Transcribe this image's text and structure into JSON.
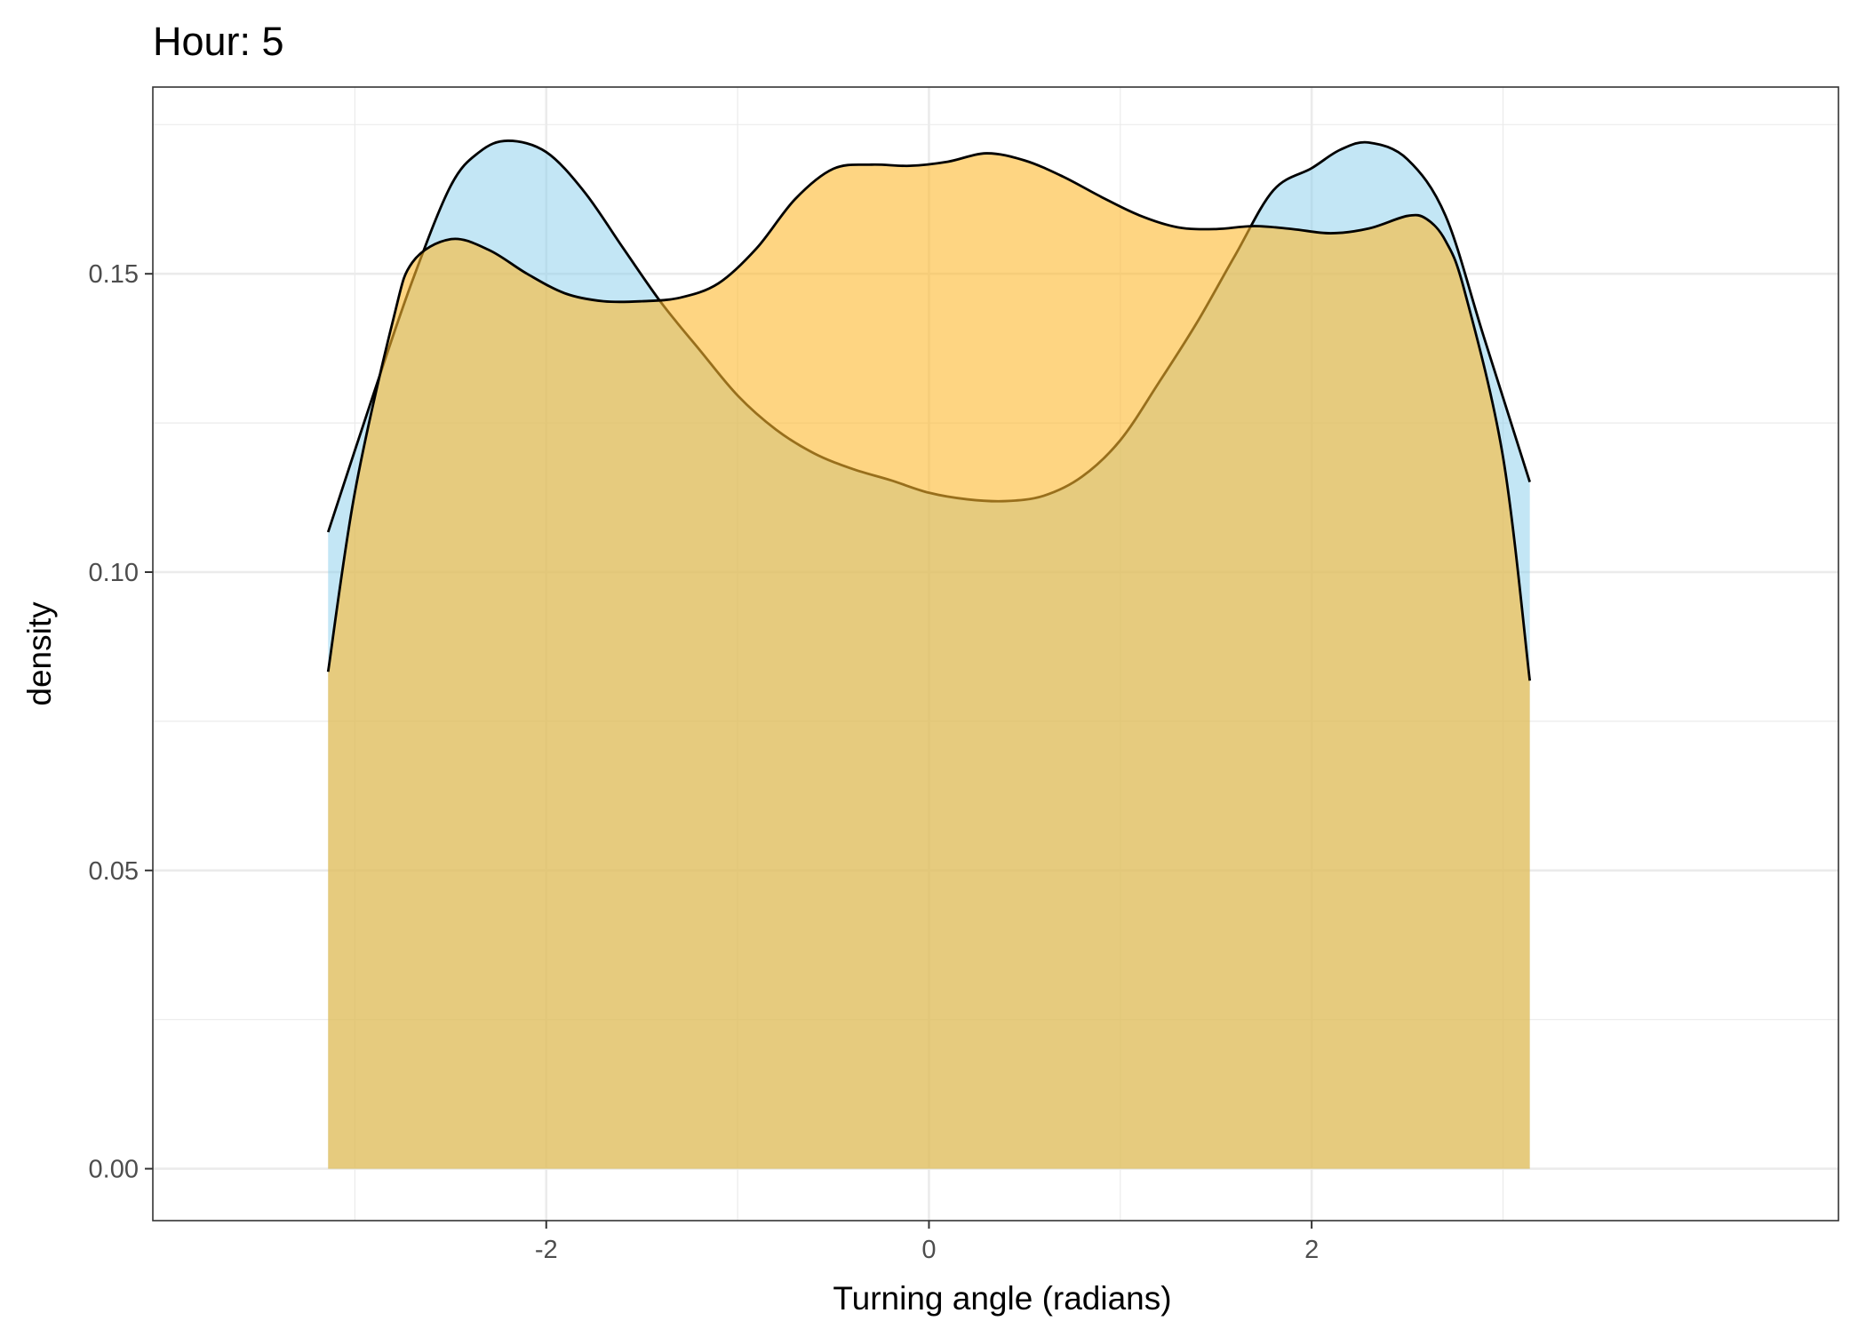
{
  "chart_data": {
    "type": "area",
    "title": "Hour: 5",
    "xlabel": "Turning angle (radians)",
    "ylabel": "density",
    "xlim": [
      -4.056,
      4.753
    ],
    "ylim": [
      -0.0087,
      0.1813
    ],
    "x_ticks": [
      -2,
      0,
      2
    ],
    "x_tick_labels": [
      "-2",
      "0",
      "2"
    ],
    "y_ticks": [
      0.0,
      0.05,
      0.1,
      0.15
    ],
    "y_tick_labels": [
      "0.00",
      "0.05",
      "0.10",
      "0.15"
    ],
    "grid": true,
    "legend": "none",
    "series": [
      {
        "color": "#87ceeb",
        "opacity": 0.5,
        "x": [
          -3.14,
          -2.9,
          -2.7,
          -2.5,
          -2.35,
          -2.2,
          -2.0,
          -1.8,
          -1.6,
          -1.4,
          -1.2,
          -1.0,
          -0.8,
          -0.6,
          -0.4,
          -0.2,
          0.0,
          0.2,
          0.4,
          0.6,
          0.8,
          1.0,
          1.2,
          1.4,
          1.6,
          1.8,
          2.0,
          2.15,
          2.3,
          2.5,
          2.7,
          2.9,
          3.14
        ],
        "y": [
          0.1067,
          0.1301,
          0.1488,
          0.1647,
          0.1704,
          0.1723,
          0.1704,
          0.1637,
          0.1544,
          0.1452,
          0.1373,
          0.1296,
          0.1239,
          0.1199,
          0.1173,
          0.1154,
          0.1133,
          0.1122,
          0.1119,
          0.1128,
          0.116,
          0.1221,
          0.1317,
          0.1418,
          0.1531,
          0.164,
          0.1677,
          0.1708,
          0.172,
          0.1692,
          0.1597,
          0.1394,
          0.1151
        ]
      },
      {
        "color": "#fdb92e",
        "opacity": 0.6,
        "x": [
          -3.14,
          -3.0,
          -2.8,
          -2.7,
          -2.5,
          -2.3,
          -2.1,
          -1.9,
          -1.7,
          -1.5,
          -1.3,
          -1.1,
          -0.9,
          -0.7,
          -0.5,
          -0.3,
          -0.1,
          0.1,
          0.3,
          0.5,
          0.7,
          0.9,
          1.1,
          1.3,
          1.5,
          1.7,
          1.9,
          2.1,
          2.3,
          2.5,
          2.6,
          2.7,
          2.8,
          3.0,
          3.14
        ],
        "y": [
          0.0833,
          0.1134,
          0.1423,
          0.1519,
          0.1558,
          0.154,
          0.15,
          0.1467,
          0.1454,
          0.1454,
          0.146,
          0.1484,
          0.1543,
          0.1625,
          0.1676,
          0.1683,
          0.1681,
          0.1688,
          0.1702,
          0.169,
          0.1663,
          0.1629,
          0.1598,
          0.1578,
          0.1575,
          0.158,
          0.1575,
          0.1568,
          0.1576,
          0.1597,
          0.1592,
          0.1555,
          0.147,
          0.1193,
          0.0818
        ]
      }
    ]
  }
}
